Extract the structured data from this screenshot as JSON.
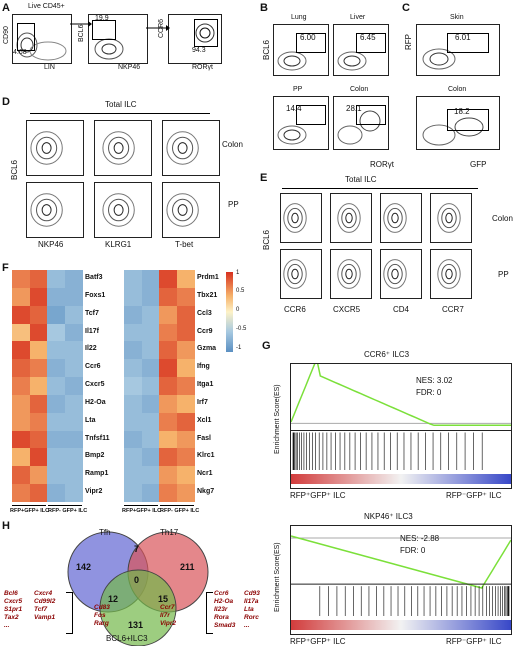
{
  "panels": {
    "A": {
      "letter": "A",
      "title": "Live CD45+",
      "plot1": {
        "x": "LIN",
        "y": "CD90",
        "gate": "4.68"
      },
      "plot2": {
        "x": "NKP46",
        "y": "BCL6",
        "gate": "19.9"
      },
      "plot3": {
        "x": "RORγt",
        "y": "CCR6",
        "gate": "94.3"
      }
    },
    "B": {
      "letter": "B",
      "ylabel": "BCL6",
      "xlabel": "RORγt",
      "plots": [
        {
          "name": "Lung",
          "value": "6.00"
        },
        {
          "name": "Liver",
          "value": "6.45"
        },
        {
          "name": "PP",
          "value": "14.4"
        },
        {
          "name": "Colon",
          "value": "28.1"
        }
      ]
    },
    "C": {
      "letter": "C",
      "ylabel": "RFP",
      "xlabel": "GFP",
      "plots": [
        {
          "name": "Skin",
          "value": "6.01"
        },
        {
          "name": "Colon",
          "value": "18.2"
        }
      ]
    },
    "D": {
      "letter": "D",
      "header": "Total ILC",
      "ylabel": "BCL6",
      "rows": [
        "Colon",
        "PP"
      ],
      "xlabels": [
        "NKP46",
        "KLRG1",
        "T-bet"
      ]
    },
    "E": {
      "letter": "E",
      "header": "Total ILC",
      "ylabel": "BCL6",
      "rows": [
        "Colon",
        "PP"
      ],
      "xlabels": [
        "CCR6",
        "CXCR5",
        "CD4",
        "CCR7"
      ]
    },
    "F": {
      "letter": "F",
      "left_genes": [
        "Batf3",
        "Foxs1",
        "Tcf7",
        "Il17f",
        "Il22",
        "Ccr6",
        "Cxcr5",
        "H2-Oa",
        "Lta",
        "Tnfsf11",
        "Bmp2",
        "Ramp1",
        "Vipr2"
      ],
      "right_genes": [
        "Prdm1",
        "Tbx21",
        "Ccl3",
        "Ccr9",
        "Gzma",
        "Ifng",
        "Itga1",
        "Irf7",
        "Xcl1",
        "Fasl",
        "Klrc1",
        "Ncr1",
        "Nkg7"
      ],
      "group1_label": "RFP+GFP+ ILC",
      "group2_label": "RFP- GFP+ ILC",
      "legend_ticks": [
        "1",
        "0.5",
        "0",
        "-0.5",
        "-1"
      ]
    },
    "G": {
      "letter": "G",
      "plot1": {
        "title": "CCR6⁺ ILC3",
        "nes": "NES: 3.02",
        "fdr": "FDR: 0",
        "ylabel": "Enrichment Score(ES)",
        "left": "RFP⁺GFP⁺ ILC",
        "right": "RFP⁻GFP⁺ ILC"
      },
      "plot2": {
        "title": "NKP46⁺ ILC3",
        "nes": "NES: -2.88",
        "fdr": "FDR: 0",
        "ylabel": "Enrichment Score(ES)",
        "left": "RFP⁺GFP⁺ ILC",
        "right": "RFP⁻GFP⁺ ILC"
      }
    },
    "H": {
      "letter": "H",
      "labels": {
        "tfh": "Tfh",
        "th17": "Th17",
        "ilc3": "BCL6+ILC3"
      },
      "counts": {
        "tfh_only": "142",
        "th17_only": "211",
        "tfh_th17": "7",
        "center": "0",
        "tfh_ilc3": "12",
        "th17_ilc3": "15",
        "ilc3_only": "131"
      },
      "left_list": [
        "Bcl6",
        "Cxcr5",
        "S1pr1",
        "Tax2",
        "...",
        "Cxcr4",
        "Cd99l2",
        "Tcf7",
        "Vamp1"
      ],
      "right_list": [
        "Ccr6",
        "H2-Oa",
        "Il23r",
        "Rora",
        "Smad3",
        "Cd93",
        "Il17a",
        "Lta",
        "Rorc",
        "..."
      ],
      "inner_left": [
        "Cd83",
        "Fos",
        "Rarg"
      ],
      "inner_right": [
        "Ccr7",
        "Il7r",
        "Vipr2"
      ]
    }
  },
  "colors": {
    "tfh": "#6b6fd6",
    "th17": "#d9545a",
    "ilc3": "#74b84a",
    "es_line": "#7be03a"
  }
}
